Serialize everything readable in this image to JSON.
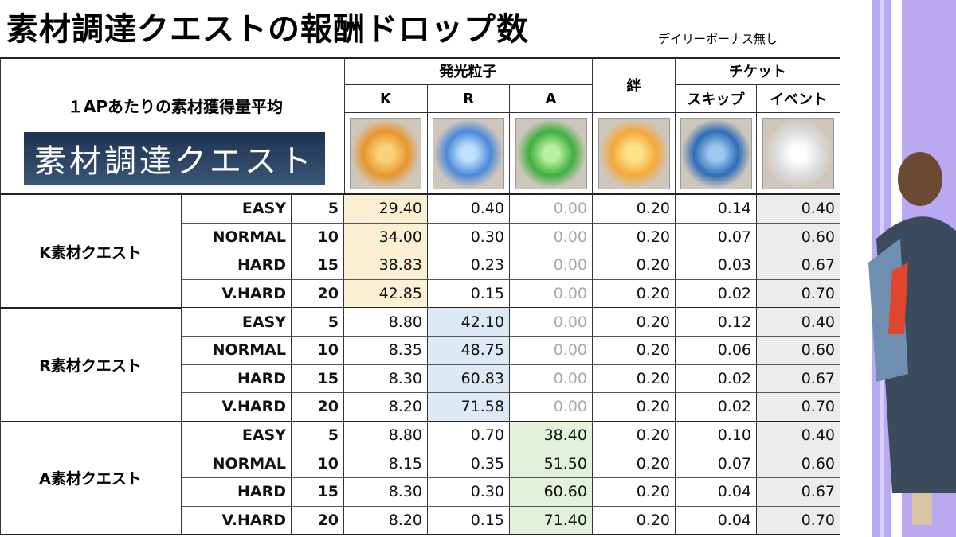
{
  "title": "素材調達クエストの報酬ドロップ数",
  "note": "デイリーボーナス無し",
  "header": {
    "caption": "１APあたりの素材獲得量平均",
    "banner": "素材調達クエスト",
    "groups": [
      "発光粒子",
      "絆",
      "チケット"
    ],
    "columns": [
      "K",
      "R",
      "A",
      "スキップ",
      "イベント"
    ]
  },
  "table": {
    "groups": [
      {
        "name": "K素材クエスト",
        "rows": [
          [
            "EASY",
            "5",
            "29.40",
            "0.40",
            "0.00",
            "0.20",
            "0.14",
            "0.40"
          ],
          [
            "NORMAL",
            "10",
            "34.00",
            "0.30",
            "0.00",
            "0.20",
            "0.07",
            "0.60"
          ],
          [
            "HARD",
            "15",
            "38.83",
            "0.23",
            "0.00",
            "0.20",
            "0.03",
            "0.67"
          ],
          [
            "V.HARD",
            "20",
            "42.85",
            "0.15",
            "0.00",
            "0.20",
            "0.02",
            "0.70"
          ]
        ]
      },
      {
        "name": "R素材クエスト",
        "rows": [
          [
            "EASY",
            "5",
            "8.80",
            "42.10",
            "0.00",
            "0.20",
            "0.12",
            "0.40"
          ],
          [
            "NORMAL",
            "10",
            "8.35",
            "48.75",
            "0.00",
            "0.20",
            "0.06",
            "0.60"
          ],
          [
            "HARD",
            "15",
            "8.30",
            "60.83",
            "0.00",
            "0.20",
            "0.02",
            "0.67"
          ],
          [
            "V.HARD",
            "20",
            "8.20",
            "71.58",
            "0.00",
            "0.20",
            "0.02",
            "0.70"
          ]
        ]
      },
      {
        "name": "A素材クエスト",
        "rows": [
          [
            "EASY",
            "5",
            "8.80",
            "0.70",
            "38.40",
            "0.20",
            "0.10",
            "0.40"
          ],
          [
            "NORMAL",
            "10",
            "8.15",
            "0.35",
            "51.50",
            "0.20",
            "0.07",
            "0.60"
          ],
          [
            "HARD",
            "15",
            "8.30",
            "0.30",
            "60.60",
            "0.20",
            "0.04",
            "0.67"
          ],
          [
            "V.HARD",
            "20",
            "8.20",
            "0.15",
            "71.40",
            "0.20",
            "0.04",
            "0.70"
          ]
        ]
      }
    ]
  }
}
